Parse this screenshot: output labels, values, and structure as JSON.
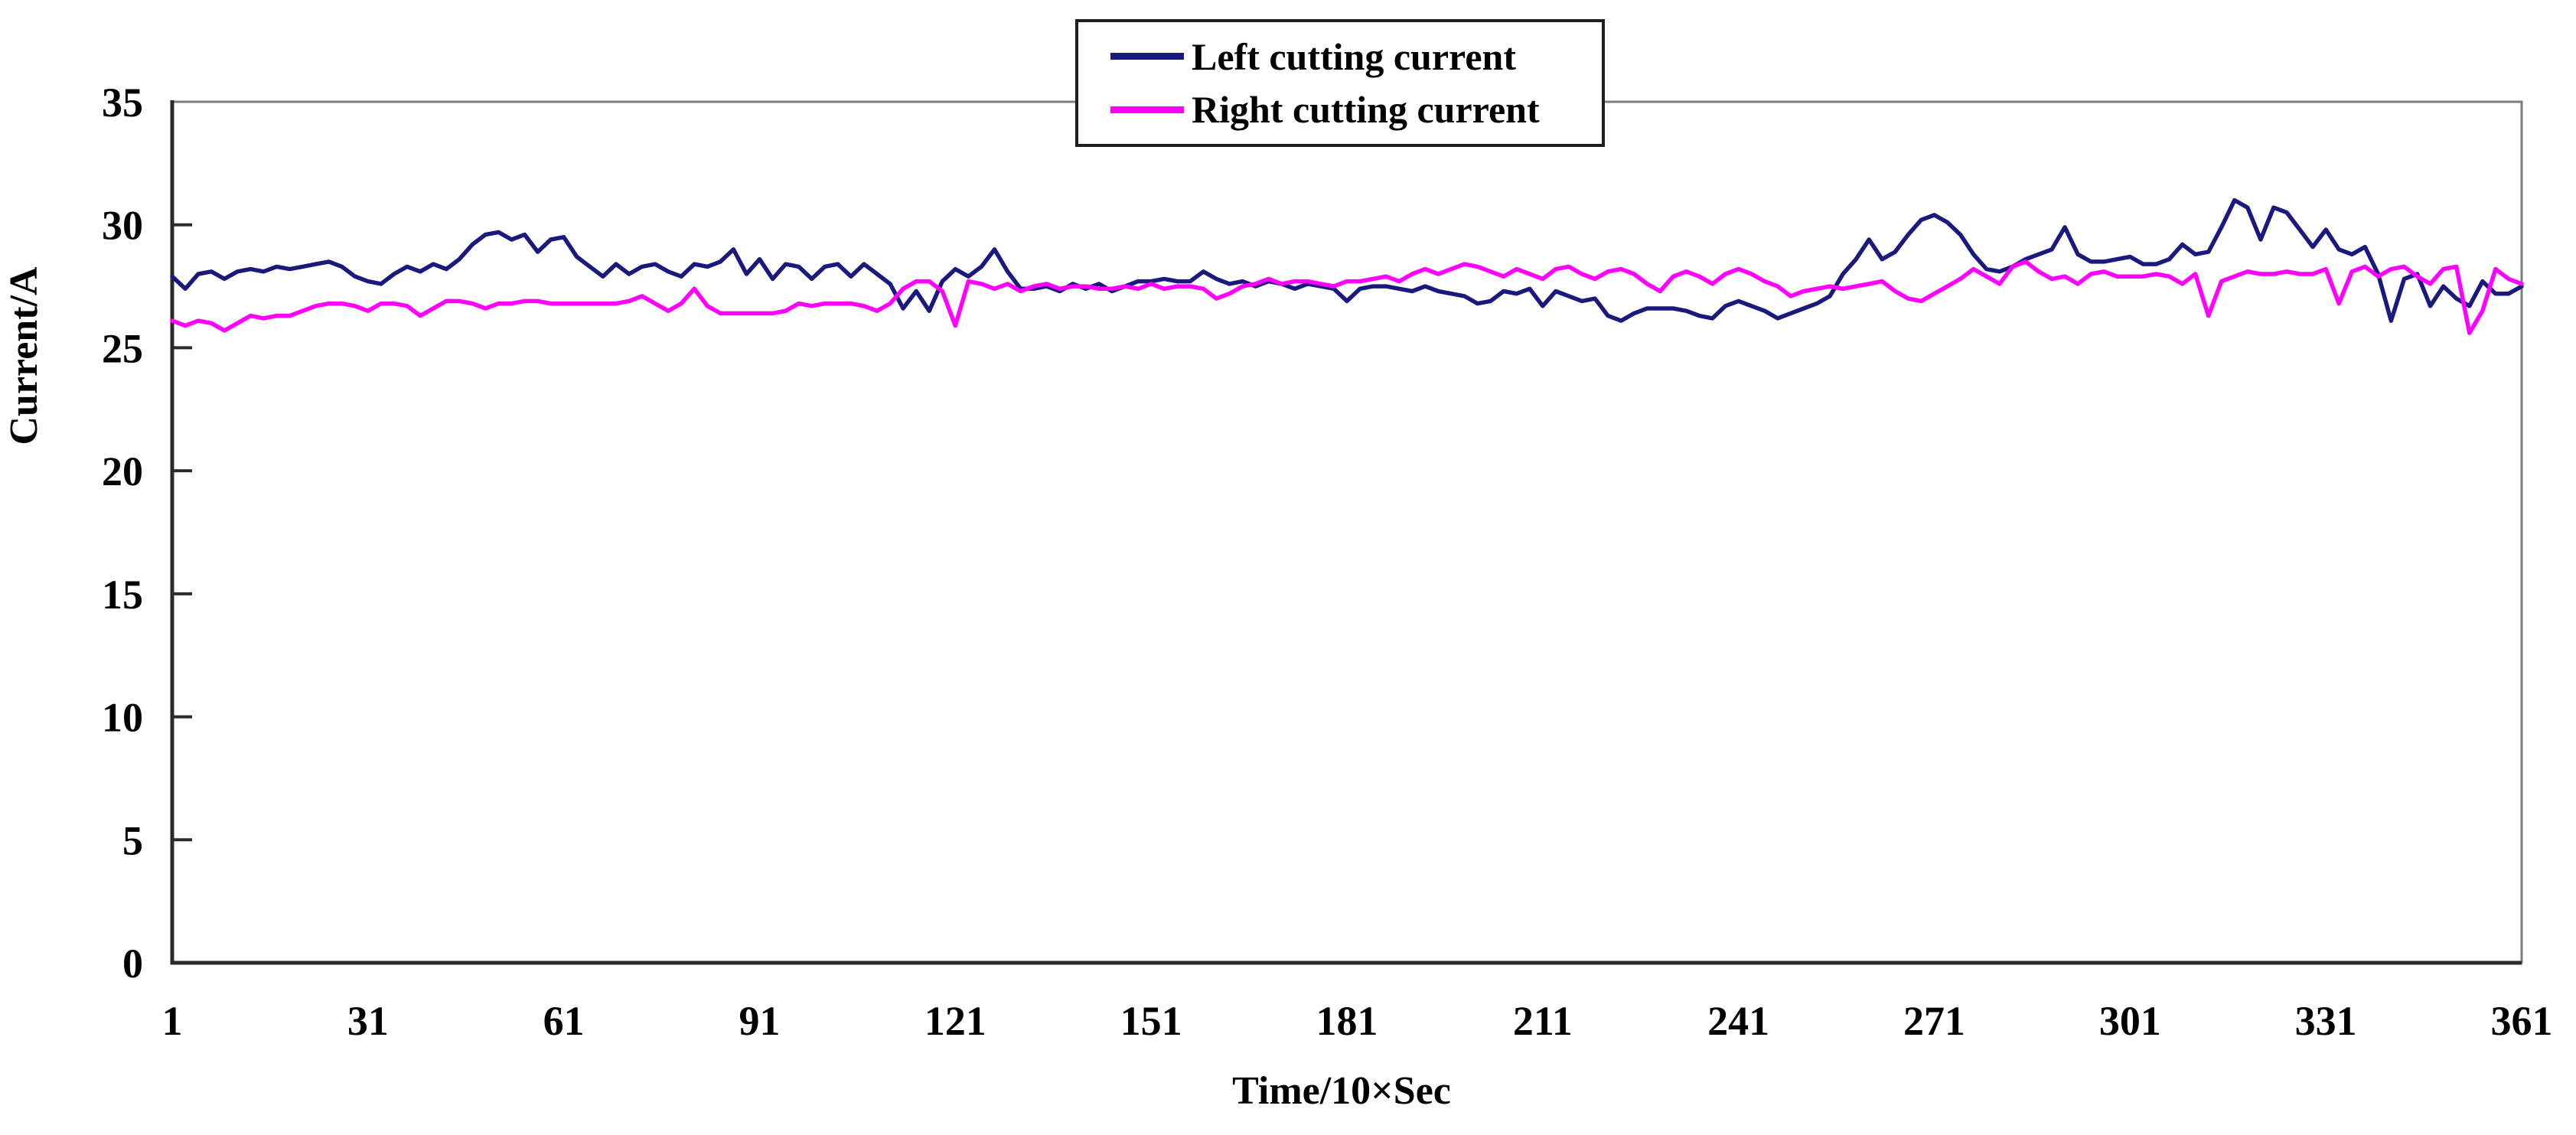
{
  "figure": {
    "background": "#ffffff"
  },
  "legend": {
    "items": [
      {
        "label": "Left cutting current",
        "color": "#1a1a7e"
      },
      {
        "label": "Right cutting current",
        "color": "#ff00ff"
      }
    ]
  },
  "axes": {
    "y_title": "Current/A",
    "x_title": "Time/10×Sec",
    "y_ticks": [
      0,
      5,
      10,
      15,
      20,
      25,
      30,
      35
    ],
    "x_ticks": [
      1,
      31,
      61,
      91,
      121,
      151,
      181,
      211,
      241,
      271,
      301,
      331,
      361
    ],
    "frame_color": "#7c7c7c",
    "axis_color": "#2b2b2b",
    "tick_color": "#2b2b2b"
  },
  "chart_data": {
    "type": "line",
    "title": "",
    "xlabel": "Time/10×Sec",
    "ylabel": "Current/A",
    "xlim": [
      1,
      361
    ],
    "ylim": [
      0,
      35
    ],
    "grid": false,
    "legend_position": "top-center",
    "x_start": 1,
    "x_step": 2,
    "series": [
      {
        "name": "Left cutting current",
        "color": "#1a1a7e",
        "values": [
          27.9,
          27.4,
          28.0,
          28.1,
          27.8,
          28.1,
          28.2,
          28.1,
          28.3,
          28.2,
          28.3,
          28.4,
          28.5,
          28.3,
          27.9,
          27.7,
          27.6,
          28.0,
          28.3,
          28.1,
          28.4,
          28.2,
          28.6,
          29.2,
          29.6,
          29.7,
          29.4,
          29.6,
          28.9,
          29.4,
          29.5,
          28.7,
          28.3,
          27.9,
          28.4,
          28.0,
          28.3,
          28.4,
          28.1,
          27.9,
          28.4,
          28.3,
          28.5,
          29.0,
          28.0,
          28.6,
          27.8,
          28.4,
          28.3,
          27.8,
          28.3,
          28.4,
          27.9,
          28.4,
          28.0,
          27.6,
          26.6,
          27.3,
          26.5,
          27.7,
          28.2,
          27.9,
          28.3,
          29.0,
          28.1,
          27.4,
          27.4,
          27.5,
          27.3,
          27.6,
          27.4,
          27.6,
          27.3,
          27.5,
          27.7,
          27.7,
          27.8,
          27.7,
          27.7,
          28.1,
          27.8,
          27.6,
          27.7,
          27.5,
          27.7,
          27.6,
          27.4,
          27.6,
          27.5,
          27.4,
          26.9,
          27.4,
          27.5,
          27.5,
          27.4,
          27.3,
          27.5,
          27.3,
          27.2,
          27.1,
          26.8,
          26.9,
          27.3,
          27.2,
          27.4,
          26.7,
          27.3,
          27.1,
          26.9,
          27.0,
          26.3,
          26.1,
          26.4,
          26.6,
          26.6,
          26.6,
          26.5,
          26.3,
          26.2,
          26.7,
          26.9,
          26.7,
          26.5,
          26.2,
          26.4,
          26.6,
          26.8,
          27.1,
          28.0,
          28.6,
          29.4,
          28.6,
          28.9,
          29.6,
          30.2,
          30.4,
          30.1,
          29.6,
          28.8,
          28.2,
          28.1,
          28.3,
          28.6,
          28.8,
          29.0,
          29.9,
          28.8,
          28.5,
          28.5,
          28.6,
          28.7,
          28.4,
          28.4,
          28.6,
          29.2,
          28.8,
          28.9,
          29.9,
          31.0,
          30.7,
          29.4,
          30.7,
          30.5,
          29.8,
          29.1,
          29.8,
          29.0,
          28.8,
          29.1,
          28.0,
          26.1,
          27.8,
          28.0,
          26.7,
          27.5,
          27.0,
          26.7,
          27.7,
          27.2,
          27.2,
          27.5
        ]
      },
      {
        "name": "Right cutting current",
        "color": "#ff00ff",
        "values": [
          26.1,
          25.9,
          26.1,
          26.0,
          25.7,
          26.0,
          26.3,
          26.2,
          26.3,
          26.3,
          26.5,
          26.7,
          26.8,
          26.8,
          26.7,
          26.5,
          26.8,
          26.8,
          26.7,
          26.3,
          26.6,
          26.9,
          26.9,
          26.8,
          26.6,
          26.8,
          26.8,
          26.9,
          26.9,
          26.8,
          26.8,
          26.8,
          26.8,
          26.8,
          26.8,
          26.9,
          27.1,
          26.8,
          26.5,
          26.8,
          27.4,
          26.7,
          26.4,
          26.4,
          26.4,
          26.4,
          26.4,
          26.5,
          26.8,
          26.7,
          26.8,
          26.8,
          26.8,
          26.7,
          26.5,
          26.8,
          27.4,
          27.7,
          27.7,
          27.3,
          25.9,
          27.7,
          27.6,
          27.4,
          27.6,
          27.3,
          27.5,
          27.6,
          27.4,
          27.5,
          27.5,
          27.4,
          27.4,
          27.5,
          27.4,
          27.6,
          27.4,
          27.5,
          27.5,
          27.4,
          27.0,
          27.2,
          27.5,
          27.6,
          27.8,
          27.6,
          27.7,
          27.7,
          27.6,
          27.5,
          27.7,
          27.7,
          27.8,
          27.9,
          27.7,
          28.0,
          28.2,
          28.0,
          28.2,
          28.4,
          28.3,
          28.1,
          27.9,
          28.2,
          28.0,
          27.8,
          28.2,
          28.3,
          28.0,
          27.8,
          28.1,
          28.2,
          28.0,
          27.6,
          27.3,
          27.9,
          28.1,
          27.9,
          27.6,
          28.0,
          28.2,
          28.0,
          27.7,
          27.5,
          27.1,
          27.3,
          27.4,
          27.5,
          27.4,
          27.5,
          27.6,
          27.7,
          27.3,
          27.0,
          26.9,
          27.2,
          27.5,
          27.8,
          28.2,
          27.9,
          27.6,
          28.3,
          28.5,
          28.1,
          27.8,
          27.9,
          27.6,
          28.0,
          28.1,
          27.9,
          27.9,
          27.9,
          28.0,
          27.9,
          27.6,
          28.0,
          26.3,
          27.7,
          27.9,
          28.1,
          28.0,
          28.0,
          28.1,
          28.0,
          28.0,
          28.2,
          26.8,
          28.1,
          28.3,
          27.9,
          28.2,
          28.3,
          27.9,
          27.6,
          28.2,
          28.3,
          25.6,
          26.5,
          28.2,
          27.8,
          27.6
        ]
      }
    ]
  }
}
